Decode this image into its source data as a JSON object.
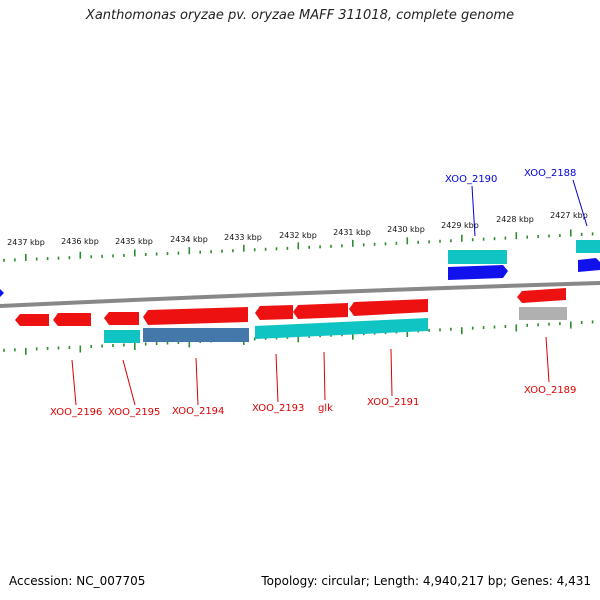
{
  "title": "Xanthomonas oryzae pv. oryzae MAFF 311018, complete genome",
  "footer": {
    "accession": "Accession: NC_007705",
    "summary": "Topology: circular; Length: 4,940,217 bp; Genes: 4,431"
  },
  "colors": {
    "backbone": "#888888",
    "tick": "#2e8b2e",
    "red_gene": "#ee1111",
    "cyan_gene": "#11c4c4",
    "blue_gene": "#1111ee",
    "gray_gene": "#b0b0b0",
    "steel_gene": "#4477aa",
    "label_red": "#dd0000",
    "label_blue": "#0000dd"
  },
  "scale_labels": [
    "2437 kbp",
    "2436 kbp",
    "2435 kbp",
    "2434 kbp",
    "2433 kbp",
    "2432 kbp",
    "2431 kbp",
    "2430 kbp",
    "2429 kbp",
    "2428 kbp",
    "2427 kbp"
  ],
  "gene_labels": [
    {
      "name": "XOO_2196",
      "color": "red"
    },
    {
      "name": "XOO_2195",
      "color": "red"
    },
    {
      "name": "XOO_2194",
      "color": "red"
    },
    {
      "name": "XOO_2193",
      "color": "red"
    },
    {
      "name": "glk",
      "color": "red"
    },
    {
      "name": "XOO_2191",
      "color": "red"
    },
    {
      "name": "XOO_2189",
      "color": "red"
    },
    {
      "name": "XOO_2190",
      "color": "blue"
    },
    {
      "name": "XOO_2188",
      "color": "blue"
    }
  ]
}
